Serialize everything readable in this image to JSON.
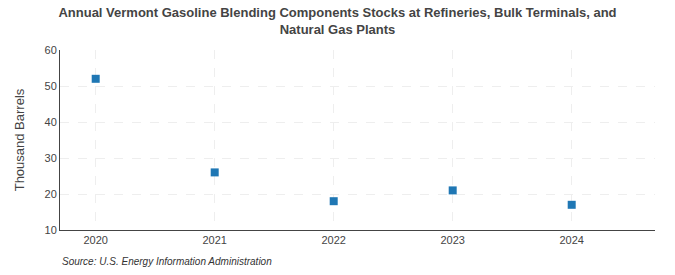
{
  "chart_data": {
    "type": "scatter",
    "title": "Annual Vermont Gasoline Blending Components Stocks at Refineries, Bulk Terminals, and\nNatural Gas Plants",
    "ylabel": "Thousand Barrels",
    "annotations": [
      "Source: U.S. Energy Information Administration"
    ],
    "x": [
      2020,
      2021,
      2022,
      2023,
      2024
    ],
    "values": [
      52,
      26,
      18,
      21,
      17
    ],
    "xlim": [
      2019.7,
      2024.7
    ],
    "xticks": [
      2020,
      2021,
      2022,
      2023,
      2024
    ],
    "ylim": [
      10,
      60
    ],
    "yticks": [
      10,
      20,
      30,
      40,
      50,
      60
    ],
    "marker": "square",
    "grid": true
  }
}
